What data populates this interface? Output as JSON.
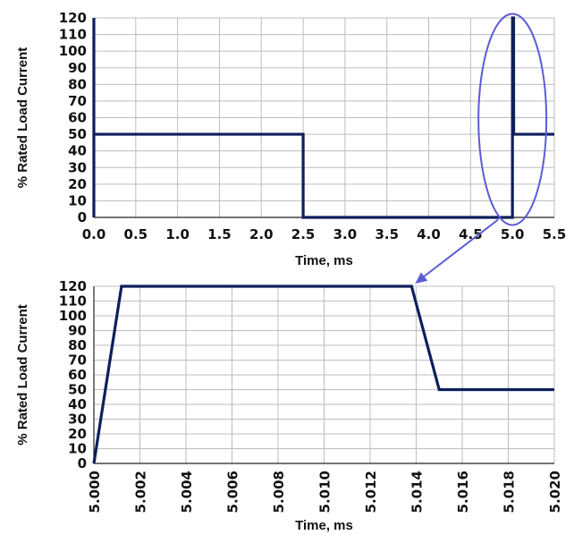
{
  "chart_data": [
    {
      "type": "line",
      "xlabel": "Time, ms",
      "ylabel": "% Rated Load Current",
      "xlim": [
        0,
        5.5
      ],
      "ylim": [
        0,
        120
      ],
      "xticks": [
        "0.0",
        "0.5",
        "1.0",
        "1.5",
        "2.0",
        "2.5",
        "3.0",
        "3.5",
        "4.0",
        "4.5",
        "5.0",
        "5.5"
      ],
      "yticks": [
        "0",
        "10",
        "20",
        "30",
        "40",
        "50",
        "60",
        "70",
        "80",
        "90",
        "100",
        "110",
        "120"
      ],
      "grid": true,
      "series": [
        {
          "color": "#0d1f5c",
          "x": [
            0.0,
            0.0,
            0.0,
            2.5,
            2.5,
            4.99,
            5.0,
            5.001,
            5.014,
            5.015,
            5.5
          ],
          "y": [
            0,
            120,
            50,
            50,
            0,
            0,
            0,
            120,
            120,
            50,
            50
          ]
        }
      ],
      "annotation": {
        "type": "ellipse",
        "color": "#5b5bd6",
        "center_x": 5.0,
        "center_y": 60,
        "connector": "arrow to lower chart"
      }
    },
    {
      "type": "line",
      "xlabel": "Time, ms",
      "ylabel": "% Rated Load Current",
      "xlim": [
        5.0,
        5.02
      ],
      "ylim": [
        0,
        120
      ],
      "xticks": [
        "5.000",
        "5.002",
        "5.004",
        "5.006",
        "5.008",
        "5.010",
        "5.012",
        "5.014",
        "5.016",
        "5.018",
        "5.020"
      ],
      "yticks": [
        "0",
        "10",
        "20",
        "30",
        "40",
        "50",
        "60",
        "70",
        "80",
        "90",
        "100",
        "110",
        "120"
      ],
      "grid": true,
      "series": [
        {
          "color": "#0d1f5c",
          "x": [
            5.0,
            5.0012,
            5.0138,
            5.015,
            5.02
          ],
          "y": [
            0,
            120,
            120,
            50,
            50
          ]
        }
      ]
    }
  ]
}
